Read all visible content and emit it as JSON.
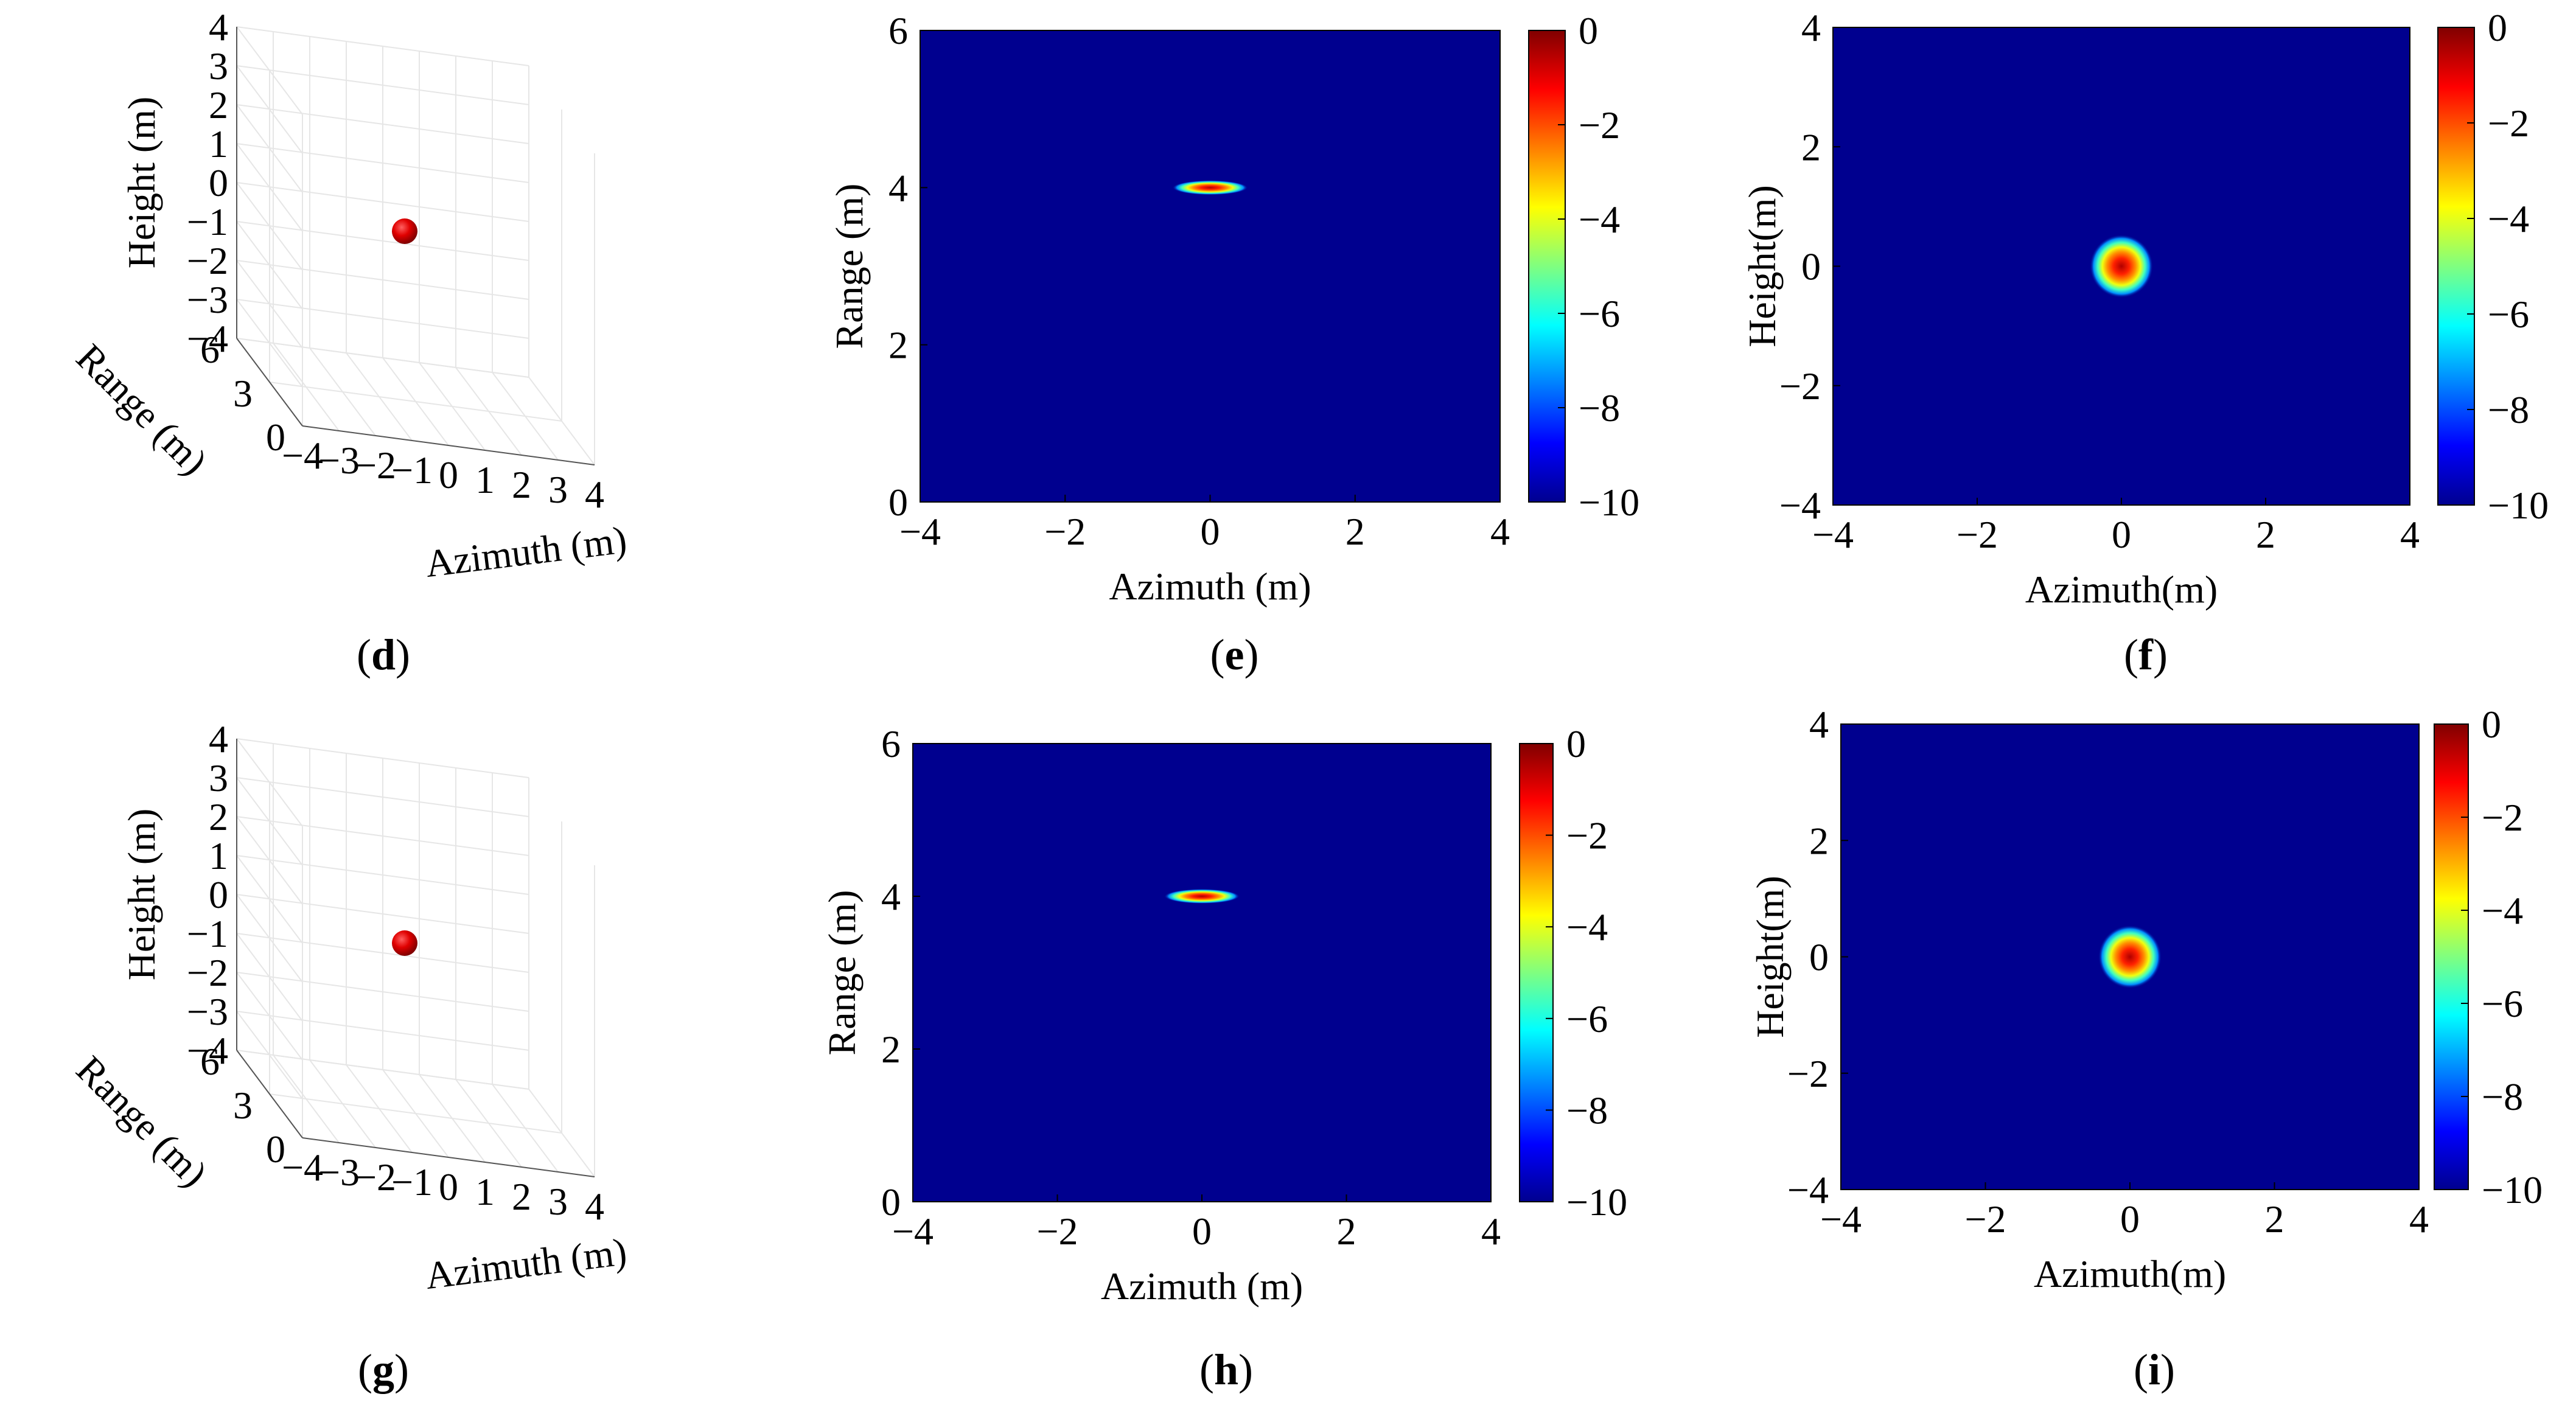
{
  "chart_data": [
    {
      "panel": "d",
      "type": "scatter3d",
      "caption_letter": "d",
      "xlabel": "Azimuth (m)",
      "ylabel": "Range (m)",
      "zlabel": "Height (m)",
      "xticks": [
        "−4",
        "−3",
        "−2",
        "−1",
        "0",
        "1",
        "2",
        "3",
        "4"
      ],
      "yticks": [
        "0",
        "3",
        "6"
      ],
      "zticks": [
        "4",
        "3",
        "2",
        "1",
        "0",
        "−1",
        "−2",
        "−3",
        "−4"
      ],
      "xlim": [
        -4,
        4
      ],
      "ylim": [
        0,
        6
      ],
      "zlim": [
        -4,
        4
      ],
      "points": [
        {
          "x": 0,
          "y": 4,
          "z": 0
        }
      ],
      "marker_color": "#d40000"
    },
    {
      "panel": "e",
      "type": "heatmap",
      "caption_letter": "e",
      "xlabel": "Azimuth (m)",
      "ylabel": "Range (m)",
      "xticks": [
        "−4",
        "−2",
        "0",
        "2",
        "4"
      ],
      "yticks": [
        "6",
        "4",
        "2",
        "0"
      ],
      "xlim": [
        -4,
        4
      ],
      "ylim": [
        0,
        6
      ],
      "peak": {
        "x": 0,
        "y": 4
      },
      "colorbar_ticks": [
        "0",
        "−2",
        "−4",
        "−6",
        "−8",
        "−10"
      ],
      "colorbar_range": [
        -10,
        0
      ],
      "background_color": "#00008f"
    },
    {
      "panel": "f",
      "type": "heatmap",
      "caption_letter": "f",
      "xlabel": "Azimuth(m)",
      "ylabel": "Height(m)",
      "xticks": [
        "−4",
        "−2",
        "0",
        "2",
        "4"
      ],
      "yticks": [
        "4",
        "2",
        "0",
        "−2",
        "−4"
      ],
      "xlim": [
        -4,
        4
      ],
      "ylim": [
        -4,
        4
      ],
      "peak": {
        "x": 0,
        "y": 0
      },
      "colorbar_ticks": [
        "0",
        "−2",
        "−4",
        "−6",
        "−8",
        "−10"
      ],
      "colorbar_range": [
        -10,
        0
      ],
      "background_color": "#00008f"
    },
    {
      "panel": "g",
      "type": "scatter3d",
      "caption_letter": "g",
      "xlabel": "Azimuth (m)",
      "ylabel": "Range (m)",
      "zlabel": "Height (m)",
      "xticks": [
        "−4",
        "−3",
        "−2",
        "−1",
        "0",
        "1",
        "2",
        "3",
        "4"
      ],
      "yticks": [
        "0",
        "3",
        "6"
      ],
      "zticks": [
        "4",
        "3",
        "2",
        "1",
        "0",
        "−1",
        "−2",
        "−3",
        "−4"
      ],
      "xlim": [
        -4,
        4
      ],
      "ylim": [
        0,
        6
      ],
      "zlim": [
        -4,
        4
      ],
      "points": [
        {
          "x": 0,
          "y": 4,
          "z": 0
        }
      ],
      "marker_color": "#d40000"
    },
    {
      "panel": "h",
      "type": "heatmap",
      "caption_letter": "h",
      "xlabel": "Azimuth (m)",
      "ylabel": "Range (m)",
      "xticks": [
        "−4",
        "−2",
        "0",
        "2",
        "4"
      ],
      "yticks": [
        "6",
        "4",
        "2",
        "0"
      ],
      "xlim": [
        -4,
        4
      ],
      "ylim": [
        0,
        6
      ],
      "peak": {
        "x": 0,
        "y": 4
      },
      "colorbar_ticks": [
        "0",
        "−2",
        "−4",
        "−6",
        "−8",
        "−10"
      ],
      "colorbar_range": [
        -10,
        0
      ],
      "background_color": "#00008f"
    },
    {
      "panel": "i",
      "type": "heatmap",
      "caption_letter": "i",
      "xlabel": "Azimuth(m)",
      "ylabel": "Height(m)",
      "xticks": [
        "−4",
        "−2",
        "0",
        "2",
        "4"
      ],
      "yticks": [
        "4",
        "2",
        "0",
        "−2",
        "−4"
      ],
      "xlim": [
        -4,
        4
      ],
      "ylim": [
        -4,
        4
      ],
      "peak": {
        "x": 0,
        "y": 0
      },
      "colorbar_ticks": [
        "0",
        "−2",
        "−4",
        "−6",
        "−8",
        "−10"
      ],
      "colorbar_range": [
        -10,
        0
      ],
      "background_color": "#00008f"
    }
  ]
}
